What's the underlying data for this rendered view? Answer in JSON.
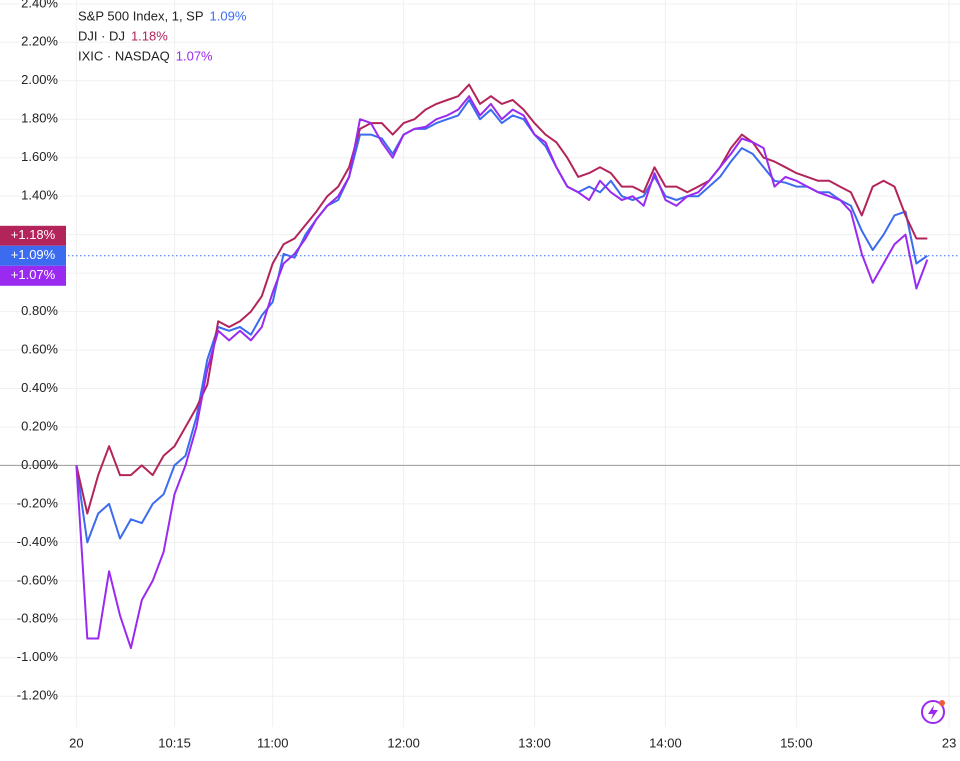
{
  "chart_data": {
    "type": "line",
    "x": [
      0,
      5,
      10,
      15,
      20,
      25,
      30,
      35,
      40,
      45,
      50,
      55,
      60,
      65,
      70,
      75,
      80,
      85,
      90,
      95,
      100,
      105,
      110,
      115,
      120,
      125,
      130,
      135,
      140,
      145,
      150,
      155,
      160,
      165,
      170,
      175,
      180,
      185,
      190,
      195,
      200,
      205,
      210,
      215,
      220,
      225,
      230,
      235,
      240,
      245,
      250,
      255,
      260,
      265,
      270,
      275,
      280,
      285,
      290,
      295,
      300,
      305,
      310,
      315,
      320,
      325,
      330,
      335,
      340,
      345,
      350,
      355,
      360,
      365,
      370,
      375,
      380,
      385,
      390
    ],
    "xlim": [
      -35,
      405
    ],
    "xticks": [
      {
        "value": 0,
        "label": "20"
      },
      {
        "value": 45,
        "label": "10:15"
      },
      {
        "value": 90,
        "label": "11:00"
      },
      {
        "value": 150,
        "label": "12:00"
      },
      {
        "value": 210,
        "label": "13:00"
      },
      {
        "value": 270,
        "label": "14:00"
      },
      {
        "value": 330,
        "label": "15:00"
      },
      {
        "value": 400,
        "label": "23"
      }
    ],
    "ylim": [
      -1.36,
      2.42
    ],
    "yticks": [
      {
        "value": -1.2,
        "label": "-1.20%"
      },
      {
        "value": -1.0,
        "label": "-1.00%"
      },
      {
        "value": -0.8,
        "label": "-0.80%"
      },
      {
        "value": -0.6,
        "label": "-0.60%"
      },
      {
        "value": -0.4,
        "label": "-0.40%"
      },
      {
        "value": -0.2,
        "label": "-0.20%"
      },
      {
        "value": 0,
        "label": "0.00%"
      },
      {
        "value": 0.2,
        "label": "0.20%"
      },
      {
        "value": 0.4,
        "label": "0.40%"
      },
      {
        "value": 0.6,
        "label": "0.60%"
      },
      {
        "value": 0.8,
        "label": "0.80%"
      },
      {
        "value": 1.0,
        "label": "1.00%"
      },
      {
        "value": 1.2,
        "label": "1.20%"
      },
      {
        "value": 1.4,
        "label": "1.40%"
      },
      {
        "value": 1.6,
        "label": "1.60%"
      },
      {
        "value": 1.8,
        "label": "1.80%"
      },
      {
        "value": 2.0,
        "label": "2.00%"
      },
      {
        "value": 2.2,
        "label": "2.20%"
      },
      {
        "value": 2.4,
        "label": "2.40%"
      }
    ],
    "grid": true,
    "series": [
      {
        "name": "S&P 500 Index, 1, SP",
        "legend_value": "1.09%",
        "badge": "+1.09%",
        "color": "#3b6cf0",
        "values": [
          0.0,
          -0.4,
          -0.25,
          -0.2,
          -0.38,
          -0.28,
          -0.3,
          -0.2,
          -0.15,
          0.0,
          0.05,
          0.25,
          0.55,
          0.72,
          0.7,
          0.72,
          0.68,
          0.78,
          0.85,
          1.1,
          1.08,
          1.2,
          1.28,
          1.35,
          1.38,
          1.5,
          1.72,
          1.72,
          1.7,
          1.62,
          1.72,
          1.75,
          1.75,
          1.78,
          1.8,
          1.82,
          1.9,
          1.8,
          1.85,
          1.78,
          1.82,
          1.8,
          1.72,
          1.66,
          1.55,
          1.45,
          1.42,
          1.45,
          1.42,
          1.48,
          1.4,
          1.38,
          1.4,
          1.5,
          1.4,
          1.38,
          1.4,
          1.4,
          1.45,
          1.5,
          1.58,
          1.65,
          1.62,
          1.55,
          1.48,
          1.47,
          1.45,
          1.45,
          1.42,
          1.42,
          1.38,
          1.35,
          1.22,
          1.12,
          1.2,
          1.3,
          1.32,
          1.05,
          1.09
        ]
      },
      {
        "name": "DJI · DJ",
        "legend_value": "1.18%",
        "badge": "+1.18%",
        "color": "#b3245b",
        "values": [
          0.0,
          -0.25,
          -0.05,
          0.1,
          -0.05,
          -0.05,
          0.0,
          -0.05,
          0.05,
          0.1,
          0.2,
          0.3,
          0.42,
          0.75,
          0.72,
          0.75,
          0.8,
          0.88,
          1.05,
          1.15,
          1.18,
          1.25,
          1.32,
          1.4,
          1.45,
          1.55,
          1.75,
          1.78,
          1.78,
          1.72,
          1.78,
          1.8,
          1.85,
          1.88,
          1.9,
          1.92,
          1.98,
          1.88,
          1.92,
          1.88,
          1.9,
          1.85,
          1.78,
          1.72,
          1.68,
          1.6,
          1.5,
          1.52,
          1.55,
          1.52,
          1.45,
          1.45,
          1.42,
          1.55,
          1.45,
          1.45,
          1.42,
          1.45,
          1.48,
          1.55,
          1.65,
          1.72,
          1.68,
          1.6,
          1.58,
          1.55,
          1.52,
          1.5,
          1.48,
          1.48,
          1.45,
          1.42,
          1.3,
          1.45,
          1.48,
          1.45,
          1.3,
          1.18,
          1.18
        ]
      },
      {
        "name": "IXIC · NASDAQ",
        "legend_value": "1.07%",
        "badge": "+1.07%",
        "color": "#9a2af0",
        "values": [
          0.0,
          -0.9,
          -0.9,
          -0.55,
          -0.78,
          -0.95,
          -0.7,
          -0.6,
          -0.45,
          -0.15,
          0.0,
          0.2,
          0.5,
          0.7,
          0.65,
          0.7,
          0.65,
          0.72,
          0.9,
          1.05,
          1.1,
          1.18,
          1.28,
          1.35,
          1.4,
          1.5,
          1.8,
          1.78,
          1.68,
          1.6,
          1.72,
          1.75,
          1.76,
          1.8,
          1.82,
          1.85,
          1.92,
          1.82,
          1.88,
          1.8,
          1.85,
          1.82,
          1.72,
          1.68,
          1.55,
          1.45,
          1.42,
          1.38,
          1.48,
          1.42,
          1.38,
          1.4,
          1.35,
          1.52,
          1.38,
          1.35,
          1.4,
          1.42,
          1.48,
          1.55,
          1.62,
          1.7,
          1.68,
          1.65,
          1.45,
          1.5,
          1.48,
          1.45,
          1.42,
          1.4,
          1.38,
          1.32,
          1.1,
          0.95,
          1.05,
          1.15,
          1.2,
          0.92,
          1.07
        ]
      }
    ]
  }
}
